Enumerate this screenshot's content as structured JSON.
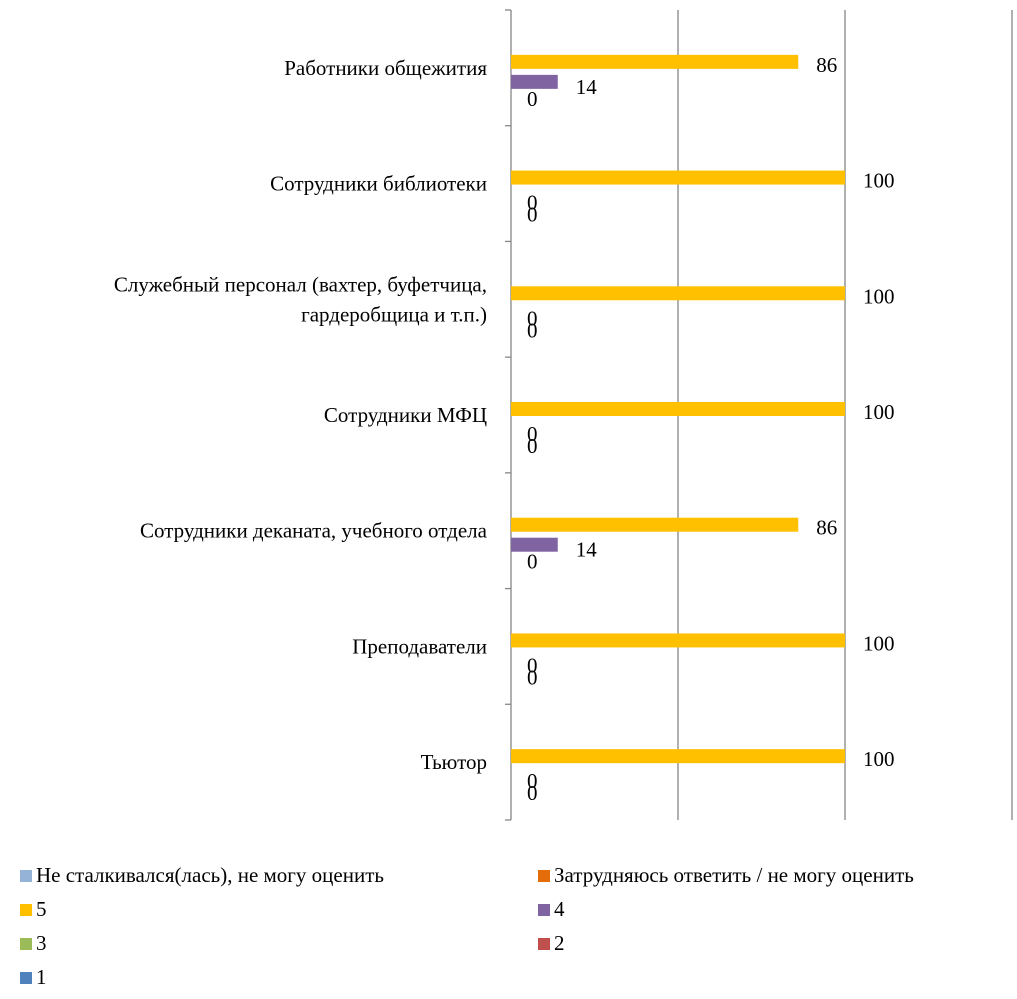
{
  "chart_data": {
    "type": "bar",
    "orientation": "horizontal",
    "categories": [
      [
        "Работники общежития"
      ],
      [
        "Сотрудники библиотеки"
      ],
      [
        "Служебный персонал (вахтер, буфетчица,",
        "гардеробщица и т.п.)"
      ],
      [
        "Сотрудники МФЦ"
      ],
      [
        "Сотрудники деканата, учебного отдела"
      ],
      [
        "Преподаватели"
      ],
      [
        "Тьютор"
      ]
    ],
    "series": [
      {
        "name": "Не сталкивался(лась), не могу оценить",
        "color": "#95B3D7",
        "values": [
          0,
          0,
          0,
          0,
          0,
          0,
          0
        ],
        "show_labels": false
      },
      {
        "name": "Затрудняюсь ответить / не могу оценить",
        "color": "#E46C0A",
        "values": [
          0,
          0,
          0,
          0,
          0,
          0,
          0
        ],
        "show_labels": false
      },
      {
        "name": "5",
        "color": "#FFC000",
        "values": [
          86,
          100,
          100,
          100,
          86,
          100,
          100
        ],
        "show_labels": true
      },
      {
        "name": "4",
        "color": "#8064A2",
        "values": [
          14,
          0,
          0,
          0,
          14,
          0,
          0
        ],
        "show_labels": true
      },
      {
        "name": "3",
        "color": "#9BBB59",
        "values": [
          0,
          0,
          0,
          0,
          0,
          0,
          0
        ],
        "show_labels": true
      },
      {
        "name": "2",
        "color": "#C0504D",
        "values": [
          0,
          0,
          0,
          0,
          0,
          0,
          0
        ],
        "show_labels": false
      },
      {
        "name": "1",
        "color": "#4F81BD",
        "values": [
          0,
          0,
          0,
          0,
          0,
          0,
          0
        ],
        "show_labels": false
      }
    ],
    "xlim": [
      0,
      150
    ],
    "gridlines": [
      50,
      100,
      150
    ],
    "x_tick_labels_visible": false,
    "legend_position": "bottom",
    "axis_color": "#868686"
  }
}
